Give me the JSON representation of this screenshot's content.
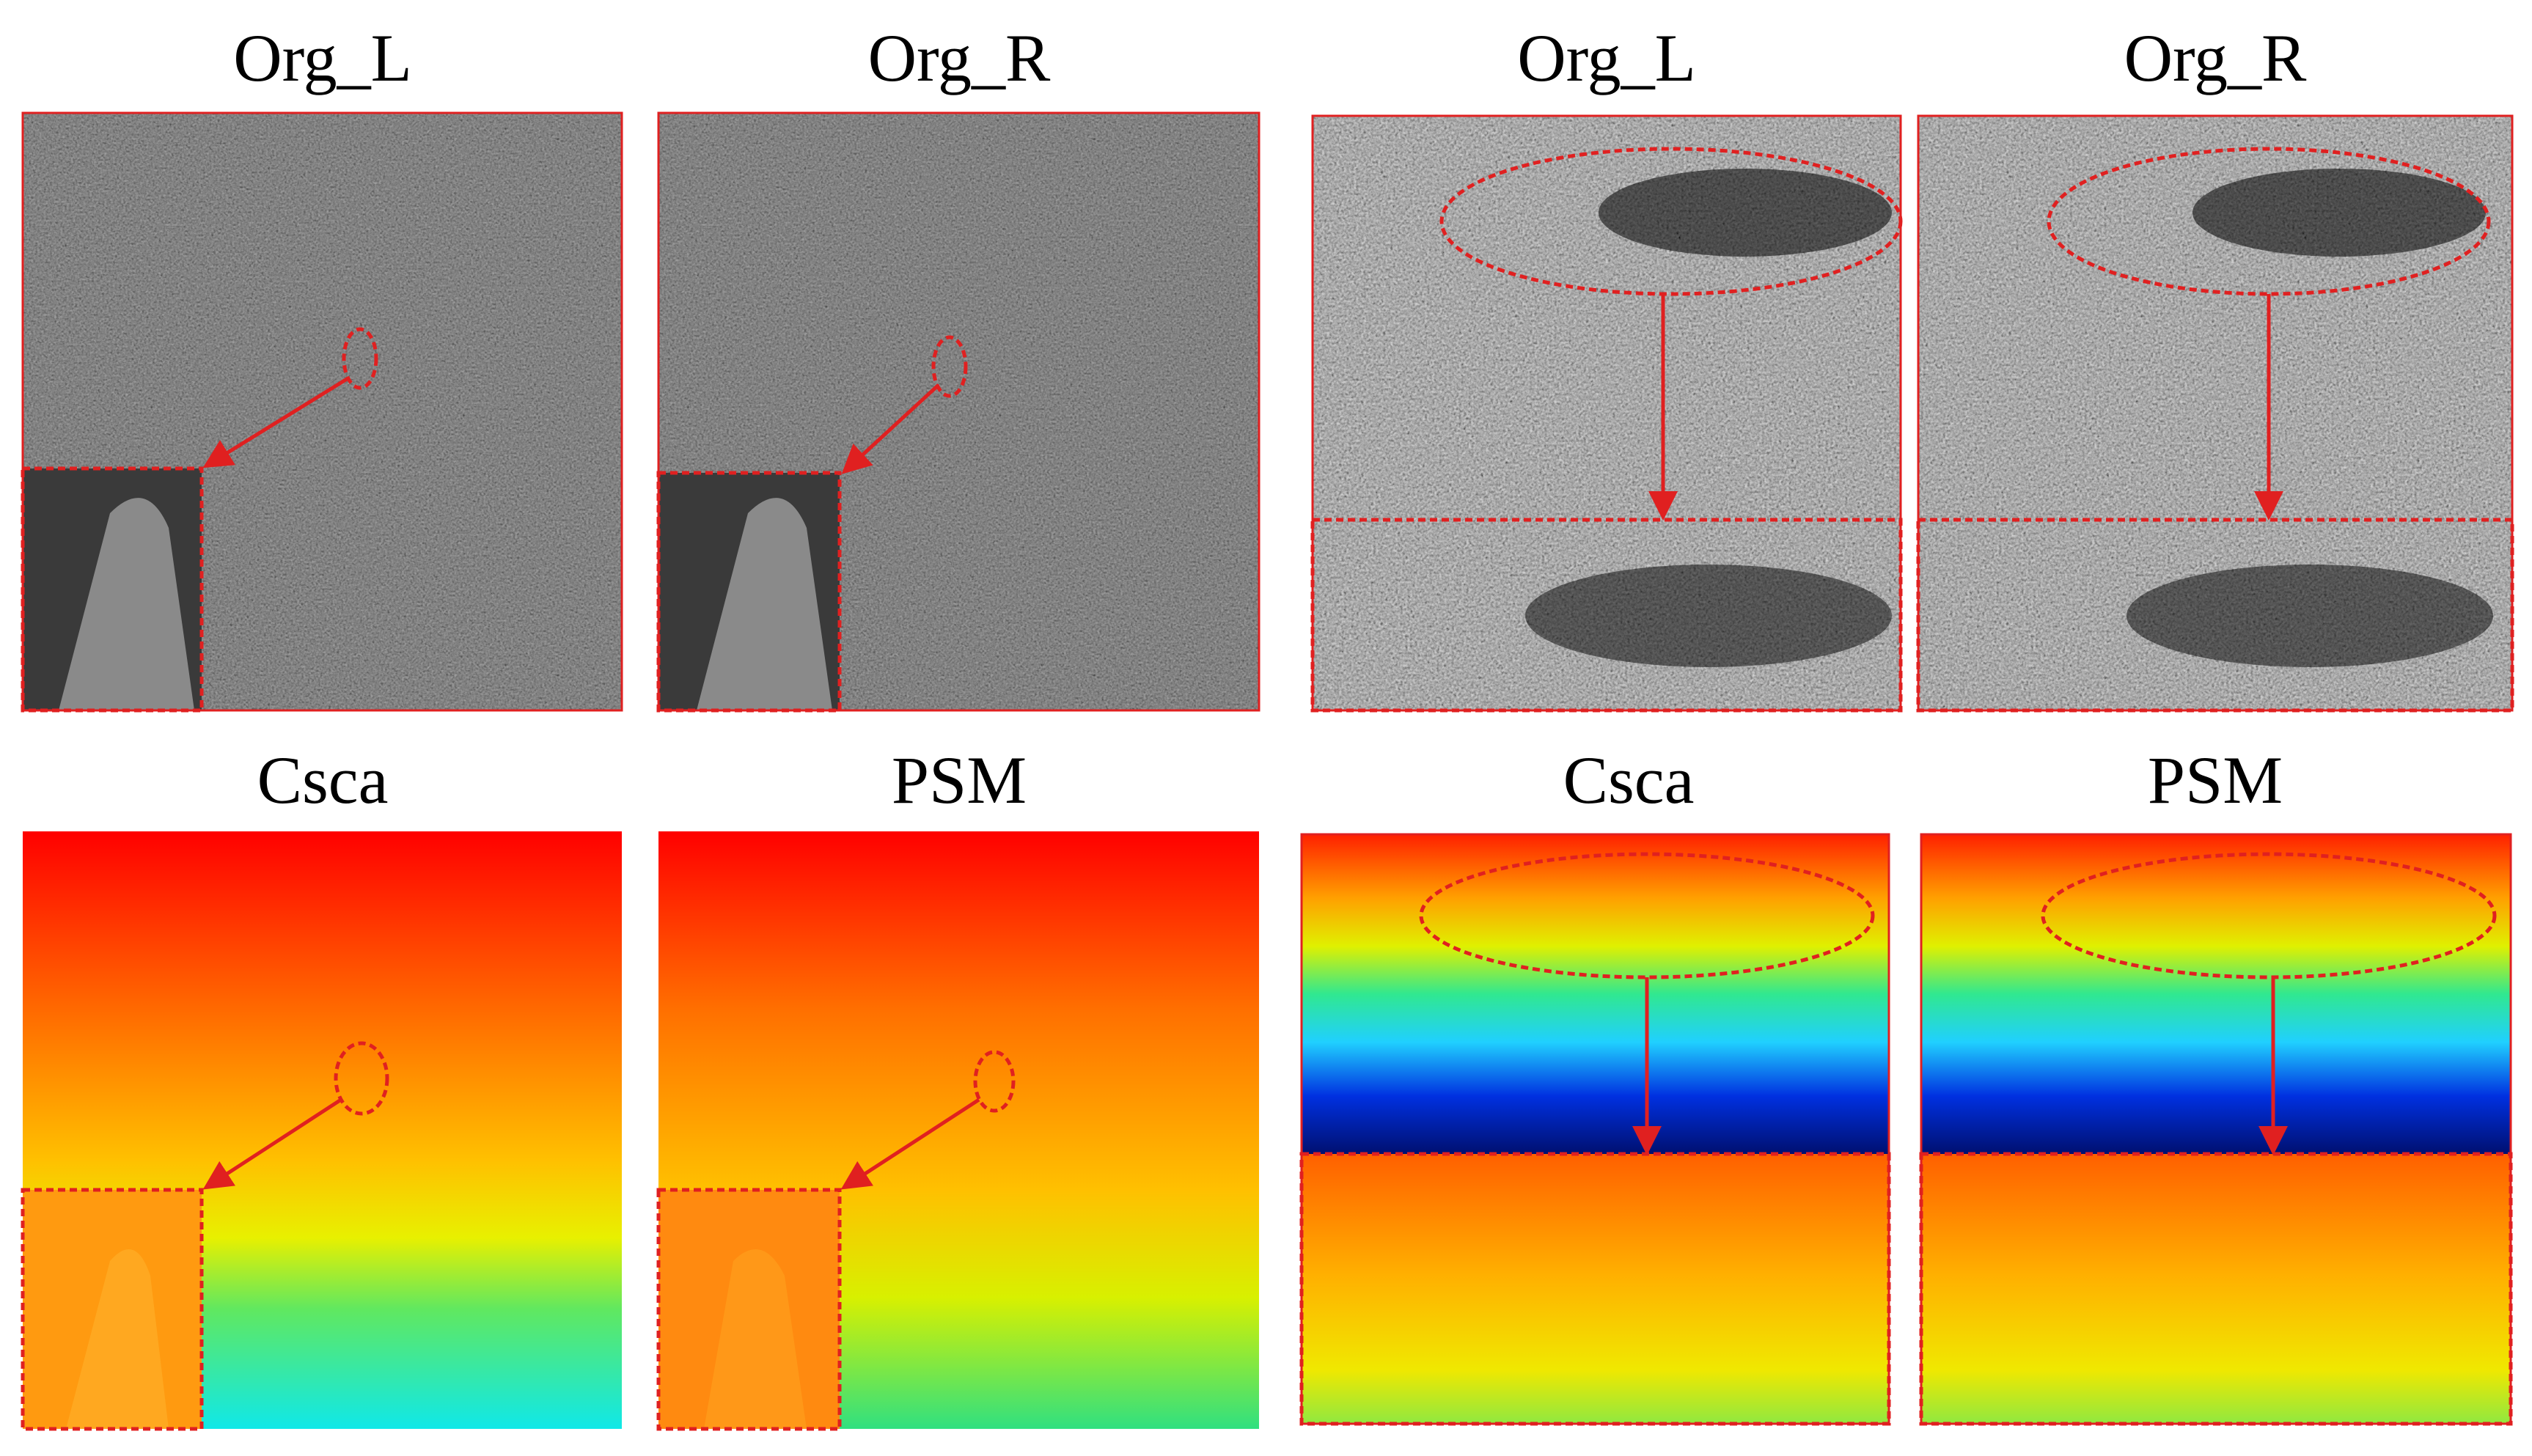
{
  "figure": {
    "panels": [
      {
        "label": "Org_L"
      },
      {
        "label": "Org_R"
      },
      {
        "label": "Org_L"
      },
      {
        "label": "Org_R"
      },
      {
        "label": "Csca"
      },
      {
        "label": "PSM"
      },
      {
        "label": "Csca"
      },
      {
        "label": "PSM"
      }
    ]
  }
}
